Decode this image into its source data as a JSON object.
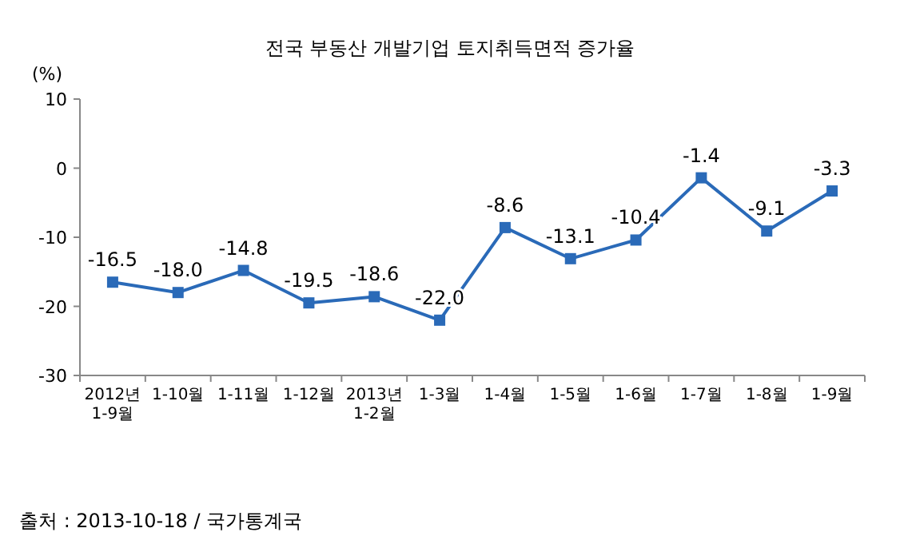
{
  "chart_data": {
    "type": "line",
    "title": "전국 부동산 개발기업 토지취득면적 증가율",
    "ylabel": "(%)",
    "categories": [
      "2012년\n1-9월",
      "1-10월",
      "1-11월",
      "1-12월",
      "2013년\n1-2월",
      "1-3월",
      "1-4월",
      "1-5월",
      "1-6월",
      "1-7월",
      "1-8월",
      "1-9월"
    ],
    "values": [
      -16.5,
      -18.0,
      -14.8,
      -19.5,
      -18.6,
      -22.0,
      -8.6,
      -13.1,
      -10.4,
      -1.4,
      -9.1,
      -3.3
    ],
    "value_labels": [
      "-16.5",
      "-18.0",
      "-14.8",
      "-19.5",
      "-18.6",
      "-22.0",
      "-8.6",
      "-13.1",
      "-10.4",
      "-1.4",
      "-9.1",
      "-3.3"
    ],
    "color": "#2a6ab8",
    "marker": "square",
    "grid": false,
    "ylim": [
      -30,
      10
    ],
    "yticks": [
      10,
      0,
      -10,
      -20,
      -30
    ],
    "annotations": [
      "출처 :  2013-10-18 / 국가통계국"
    ]
  }
}
